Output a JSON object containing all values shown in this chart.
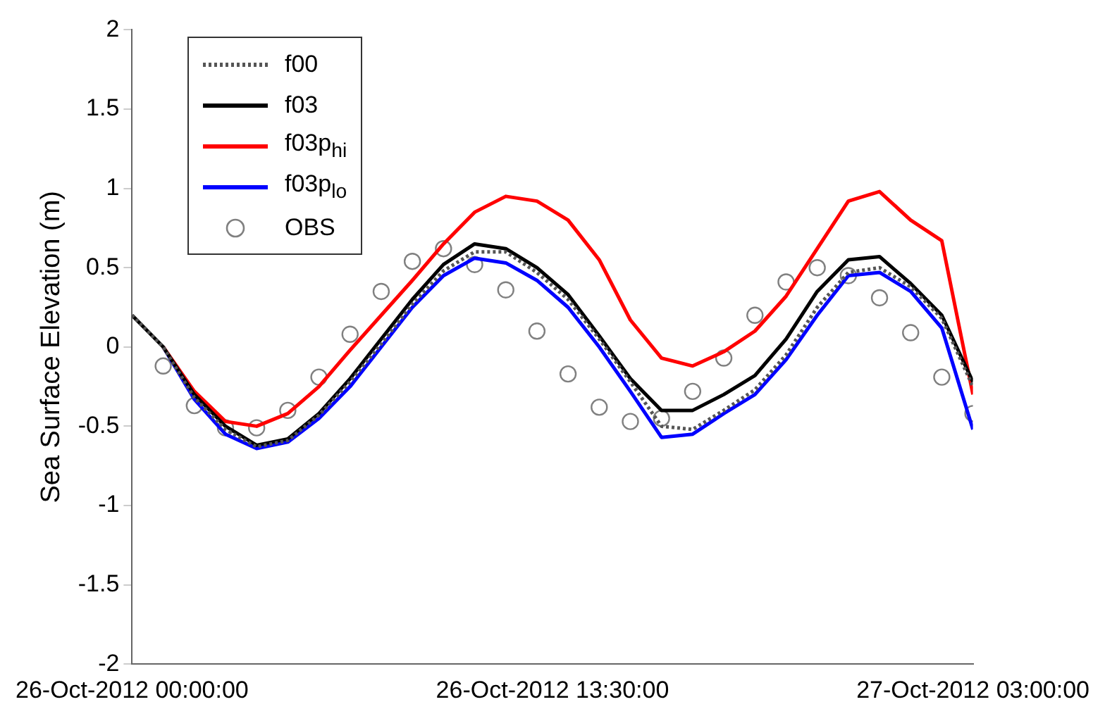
{
  "chart_data": {
    "type": "line",
    "ylabel": "Sea Surface Elevation (m)",
    "xlim": [
      "2012-10-26T00:00",
      "2012-10-27T03:00"
    ],
    "xticks": [
      {
        "value": "2012-10-26T00:00",
        "label": "26-Oct-2012 00:00:00"
      },
      {
        "value": "2012-10-26T13:30",
        "label": "26-Oct-2012 13:30:00"
      },
      {
        "value": "2012-10-27T03:00",
        "label": "27-Oct-2012 03:00:00"
      }
    ],
    "ylim": [
      -2,
      2
    ],
    "yticks": [
      -2,
      -1.5,
      -1,
      -0.5,
      0,
      0.5,
      1,
      1.5,
      2
    ],
    "grid": false,
    "legend": "top left",
    "x": [
      "2012-10-26T00:00",
      "2012-10-26T01:00",
      "2012-10-26T02:00",
      "2012-10-26T03:00",
      "2012-10-26T04:00",
      "2012-10-26T05:00",
      "2012-10-26T06:00",
      "2012-10-26T07:00",
      "2012-10-26T08:00",
      "2012-10-26T09:00",
      "2012-10-26T10:00",
      "2012-10-26T11:00",
      "2012-10-26T12:00",
      "2012-10-26T13:00",
      "2012-10-26T14:00",
      "2012-10-26T15:00",
      "2012-10-26T16:00",
      "2012-10-26T17:00",
      "2012-10-26T18:00",
      "2012-10-26T19:00",
      "2012-10-26T20:00",
      "2012-10-26T21:00",
      "2012-10-26T22:00",
      "2012-10-26T23:00",
      "2012-10-27T00:00",
      "2012-10-27T01:00",
      "2012-10-27T02:00",
      "2012-10-27T03:00"
    ],
    "series": [
      {
        "name": "f00",
        "color": "#555555",
        "line_style": "dotted",
        "marker": "none",
        "values": [
          0.2,
          0,
          -0.32,
          -0.52,
          -0.63,
          -0.59,
          -0.43,
          -0.22,
          0.02,
          0.27,
          0.48,
          0.6,
          0.6,
          0.47,
          0.3,
          0.05,
          -0.22,
          -0.5,
          -0.52,
          -0.4,
          -0.27,
          -0.05,
          0.25,
          0.47,
          0.5,
          0.38,
          0.18,
          -0.25
        ]
      },
      {
        "name": "f03",
        "color": "#000000",
        "line_style": "solid",
        "marker": "none",
        "values": [
          0.2,
          0,
          -0.3,
          -0.5,
          -0.62,
          -0.58,
          -0.42,
          -0.2,
          0.05,
          0.3,
          0.52,
          0.65,
          0.62,
          0.5,
          0.33,
          0.07,
          -0.2,
          -0.4,
          -0.4,
          -0.3,
          -0.18,
          0.05,
          0.35,
          0.55,
          0.57,
          0.4,
          0.2,
          -0.22
        ]
      },
      {
        "name": "f03p$_{hi}$",
        "color": "#ff0000",
        "line_style": "solid",
        "marker": "none",
        "values": [
          null,
          0,
          -0.28,
          -0.47,
          -0.5,
          -0.42,
          -0.25,
          -0.02,
          0.2,
          0.42,
          0.65,
          0.85,
          0.95,
          0.92,
          0.8,
          0.55,
          0.17,
          -0.07,
          -0.12,
          -0.03,
          0.1,
          0.32,
          0.62,
          0.92,
          0.98,
          0.8,
          0.67,
          -0.3
        ]
      },
      {
        "name": "f03p$_{lo}$",
        "color": "#0000ff",
        "line_style": "solid",
        "marker": "none",
        "values": [
          null,
          0,
          -0.33,
          -0.55,
          -0.64,
          -0.6,
          -0.45,
          -0.25,
          0,
          0.25,
          0.45,
          0.56,
          0.53,
          0.42,
          0.25,
          0,
          -0.28,
          -0.57,
          -0.55,
          -0.42,
          -0.3,
          -0.08,
          0.2,
          0.45,
          0.47,
          0.35,
          0.12,
          -0.52
        ]
      },
      {
        "name": "OBS",
        "type": "scatter",
        "color": "#808080",
        "marker": "circle",
        "values": [
          null,
          -0.12,
          -0.37,
          -0.51,
          -0.51,
          -0.4,
          -0.19,
          0.08,
          0.35,
          0.54,
          0.62,
          0.52,
          0.36,
          0.1,
          -0.17,
          -0.38,
          -0.47,
          -0.45,
          -0.28,
          -0.07,
          0.2,
          0.41,
          0.5,
          0.45,
          0.31,
          0.09,
          -0.19,
          -0.42
        ]
      }
    ]
  }
}
